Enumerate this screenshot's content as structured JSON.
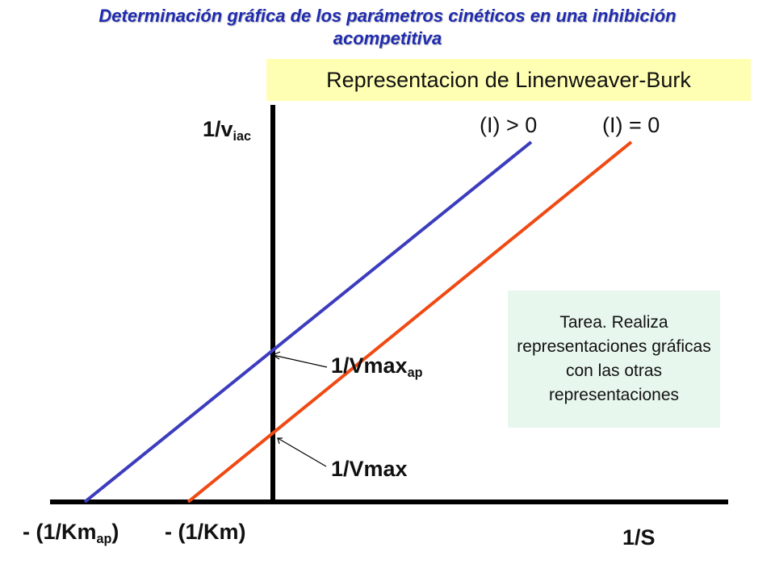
{
  "slide": {
    "title_line1": "Determinación gráfica de los parámetros cinéticos en una inhibición",
    "title_line2": "acompetitiva",
    "banner": "Representacion de Linenweaver-Burk",
    "task": "Tarea. Realiza representaciones gráficas con las otras representaciones"
  },
  "axes": {
    "y_label_main": "1/v",
    "y_label_sub": "iac",
    "x_label": "1/S"
  },
  "lines": {
    "inhibited": {
      "label": "(I) > 0",
      "color": "#3c3cbe"
    },
    "uninhibited": {
      "label": "(I) = 0",
      "color": "#f04a14"
    }
  },
  "annotations": {
    "vmax_ap_main": "1/Vmax",
    "vmax_ap_sub": "ap",
    "vmax": "1/Vmax",
    "km_ap_prefix": "- (1/Km",
    "km_ap_sub": "ap",
    "km_ap_suffix": ")",
    "km": "- (1/Km)"
  },
  "colors": {
    "title": "#1f2bb0",
    "banner_bg": "#ffffb3",
    "task_bg": "#e8f7ee",
    "axis": "#000000"
  }
}
